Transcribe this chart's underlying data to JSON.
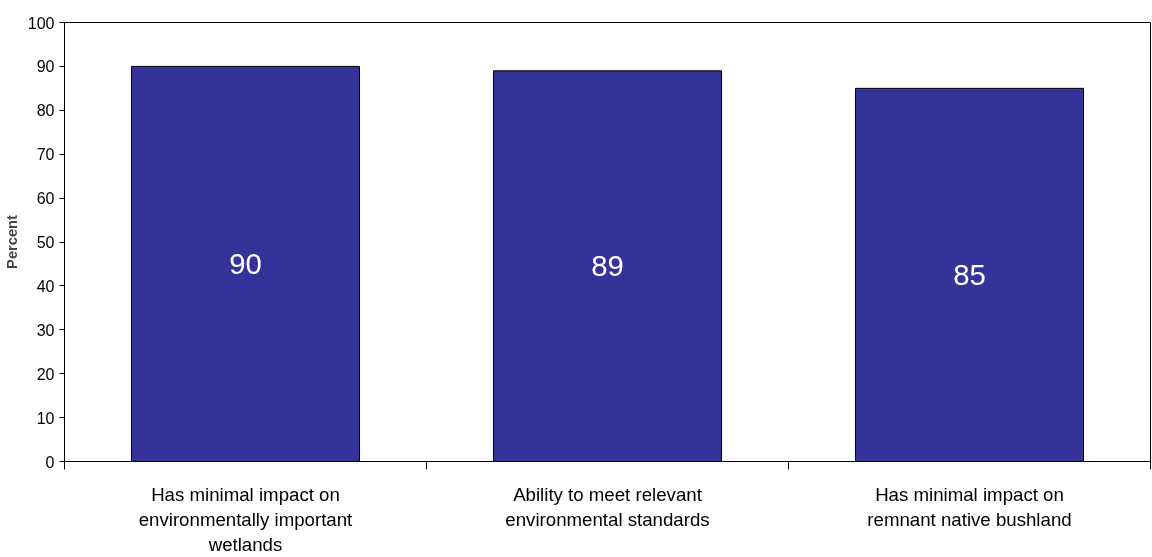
{
  "chart_data": {
    "type": "bar",
    "ylabel": "Percent",
    "categories": [
      "Has minimal impact on environmentally important wetlands",
      "Ability to meet relevant environmental standards",
      "Has minimal impact on remnant native bushland"
    ],
    "values": [
      90,
      89,
      85
    ],
    "color": "#333399",
    "ylim": [
      0,
      100
    ],
    "yticks": [
      0,
      10,
      20,
      30,
      40,
      50,
      60,
      70,
      80,
      90,
      100
    ],
    "data_labels": true,
    "grid": false
  }
}
